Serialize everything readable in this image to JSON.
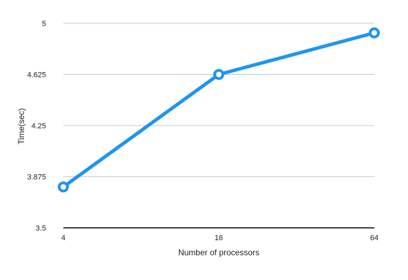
{
  "chart_data": {
    "type": "line",
    "title": "",
    "xlabel": "Number of processors",
    "ylabel": "Time(sec)",
    "categories": [
      "4",
      "16",
      "64"
    ],
    "series": [
      {
        "name": "",
        "values": [
          3.8,
          4.625,
          4.93
        ]
      }
    ],
    "ylim": [
      3.5,
      5
    ],
    "yticks": [
      "3.5",
      "3.875",
      "4.25",
      "4.625",
      "5"
    ],
    "grid": "horizontal",
    "legend": "none",
    "colors": {
      "series": "#1f95ee",
      "grid": "#c8c8c8",
      "axis": "#000000",
      "marker_fill": "#ffffff"
    }
  }
}
